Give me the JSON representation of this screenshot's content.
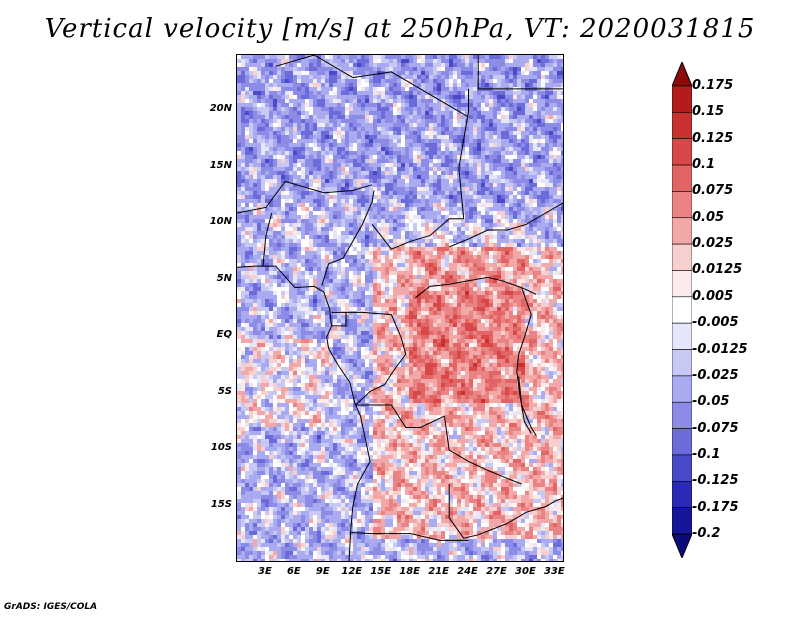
{
  "title": "Vertical velocity [m/s] at 250hPa, VT: 2020031815",
  "footer": "GrADS: IGES/COLA",
  "chart_data": {
    "type": "heatmap",
    "title": "Vertical velocity [m/s] at 250hPa, VT: 2020031815",
    "variable": "Vertical velocity",
    "units": "m/s",
    "level": "250hPa",
    "valid_time": "2020031815",
    "lon_range": [
      0,
      34
    ],
    "lat_range": [
      -20,
      25
    ],
    "y_ticks": [
      "20N",
      "15N",
      "10N",
      "5N",
      "EQ",
      "5S",
      "10S",
      "15S"
    ],
    "y_tick_values": [
      20,
      15,
      10,
      5,
      0,
      -5,
      -10,
      -15
    ],
    "x_ticks": [
      "3E",
      "6E",
      "9E",
      "12E",
      "15E",
      "18E",
      "21E",
      "24E",
      "27E",
      "30E",
      "33E"
    ],
    "x_tick_values": [
      3,
      6,
      9,
      12,
      15,
      18,
      21,
      24,
      27,
      30,
      33
    ],
    "colorbar": {
      "labels": [
        "0.175",
        "0.15",
        "0.125",
        "0.1",
        "0.075",
        "0.05",
        "0.025",
        "0.0125",
        "0.005",
        "-0.005",
        "-0.0125",
        "-0.025",
        "-0.05",
        "-0.075",
        "-0.1",
        "-0.125",
        "-0.175",
        "-0.2"
      ],
      "colors": [
        "#8b0b0b",
        "#b31c1c",
        "#c93030",
        "#d84848",
        "#e26565",
        "#ea8484",
        "#f2a8a8",
        "#f7cfcf",
        "#fcebeb",
        "#ffffff",
        "#e6e6fa",
        "#c8c8f5",
        "#aaaaf0",
        "#8c8ce6",
        "#6b6bd9",
        "#4a4ac9",
        "#2a2ab5",
        "#16169a",
        "#0a0a78"
      ]
    }
  }
}
